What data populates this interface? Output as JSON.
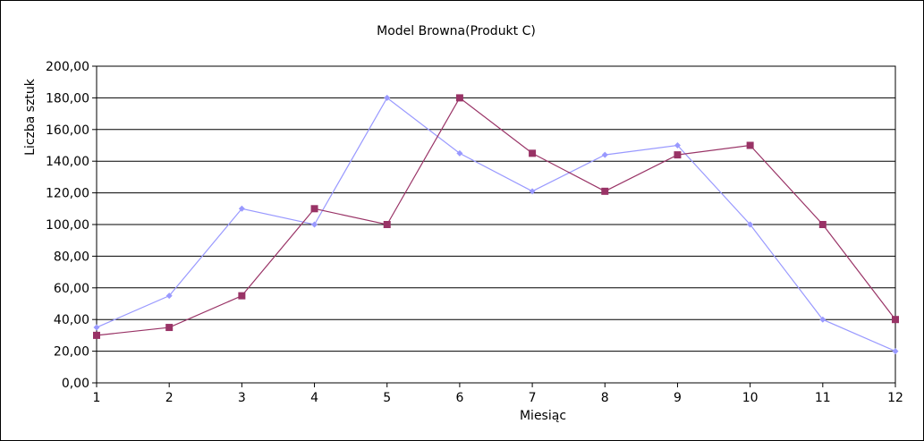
{
  "chart_data": {
    "type": "line",
    "title": "Model Browna(Produkt C)",
    "xlabel": "Miesiąc",
    "ylabel": "Liczba sztuk",
    "x": [
      1,
      2,
      3,
      4,
      5,
      6,
      7,
      8,
      9,
      10,
      11,
      12
    ],
    "x_tick_labels": [
      "1",
      "2",
      "3",
      "4",
      "5",
      "6",
      "7",
      "8",
      "9",
      "10",
      "11",
      "12"
    ],
    "ylim": [
      0,
      200
    ],
    "y_tick_labels": [
      "0,00",
      "20,00",
      "40,00",
      "60,00",
      "80,00",
      "100,00",
      "120,00",
      "140,00",
      "160,00",
      "180,00",
      "200,00"
    ],
    "grid": "horizontal",
    "legend": "none",
    "series": [
      {
        "values": [
          35,
          55,
          110,
          100,
          180,
          145,
          121,
          144,
          150,
          100,
          40,
          20
        ],
        "color": "#9999ff",
        "marker": "diamond"
      },
      {
        "values": [
          30,
          35,
          55,
          110,
          100,
          180,
          145,
          121,
          144,
          150,
          100,
          40
        ],
        "color": "#993366",
        "marker": "square"
      }
    ]
  }
}
